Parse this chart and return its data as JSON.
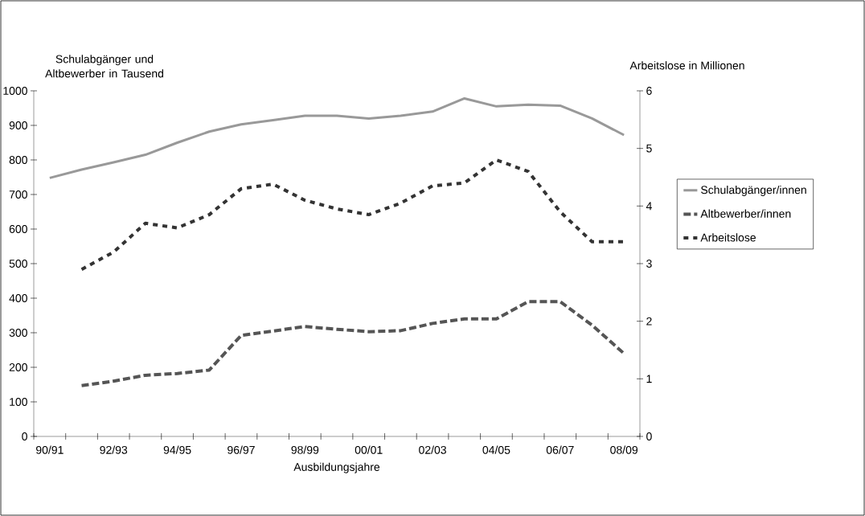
{
  "chart_data": {
    "type": "line",
    "ylabel": "Schulabgänger und Altbewerber in Tausend",
    "y2label": "Arbeitslose in Millionen",
    "xlabel": "Ausbildungsjahre",
    "categories": [
      "90/91",
      null,
      "92/93",
      null,
      "94/95",
      null,
      "96/97",
      null,
      "98/99",
      null,
      "00/01",
      null,
      "02/03",
      null,
      "04/05",
      null,
      "06/07",
      null,
      "08/09"
    ],
    "ylim": [
      0,
      1000
    ],
    "yticks": [
      0,
      100,
      200,
      300,
      400,
      500,
      600,
      700,
      800,
      900,
      1000
    ],
    "y2lim": [
      0,
      6
    ],
    "y2ticks": [
      0,
      1,
      2,
      3,
      4,
      5,
      6
    ],
    "legend": "right",
    "marker": "none",
    "series": [
      {
        "name": "Schulabgänger/innen",
        "color": "#999999",
        "line_style": "solid",
        "values": [
          748,
          772,
          793,
          815,
          850,
          882,
          903,
          915,
          928,
          928,
          920,
          928,
          940,
          978,
          955,
          960,
          957,
          920,
          872
        ]
      },
      {
        "name": "Altbewerber/innen",
        "color": "#555555",
        "line_style": "dashed",
        "values": [
          null,
          147,
          160,
          177,
          182,
          192,
          292,
          305,
          318,
          310,
          303,
          306,
          327,
          340,
          340,
          390,
          390,
          322,
          240
        ]
      },
      {
        "name": "Arbeitslose",
        "color": "#333333",
        "line_style": "dotted",
        "axis": "y2",
        "values": [
          null,
          2.9,
          3.2,
          3.7,
          3.62,
          3.85,
          4.3,
          4.38,
          4.1,
          3.95,
          3.85,
          4.05,
          4.35,
          4.4,
          4.8,
          4.6,
          3.9,
          3.38,
          3.38
        ]
      }
    ]
  }
}
